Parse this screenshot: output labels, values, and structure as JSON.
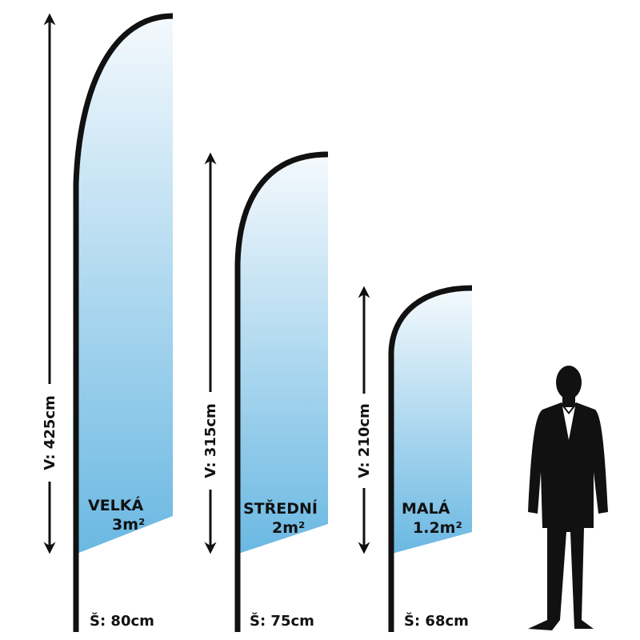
{
  "flags": [
    {
      "name": "VELKÁ",
      "area": "3m²",
      "height": "V: 425cm",
      "width": "Š: 80cm"
    },
    {
      "name": "STŘEDNÍ",
      "area": "2m²",
      "height": "V: 315cm",
      "width": "Š: 75cm"
    },
    {
      "name": "MALÁ",
      "area": "1.2m²",
      "height": "V: 210cm",
      "width": "Š: 68cm"
    }
  ]
}
